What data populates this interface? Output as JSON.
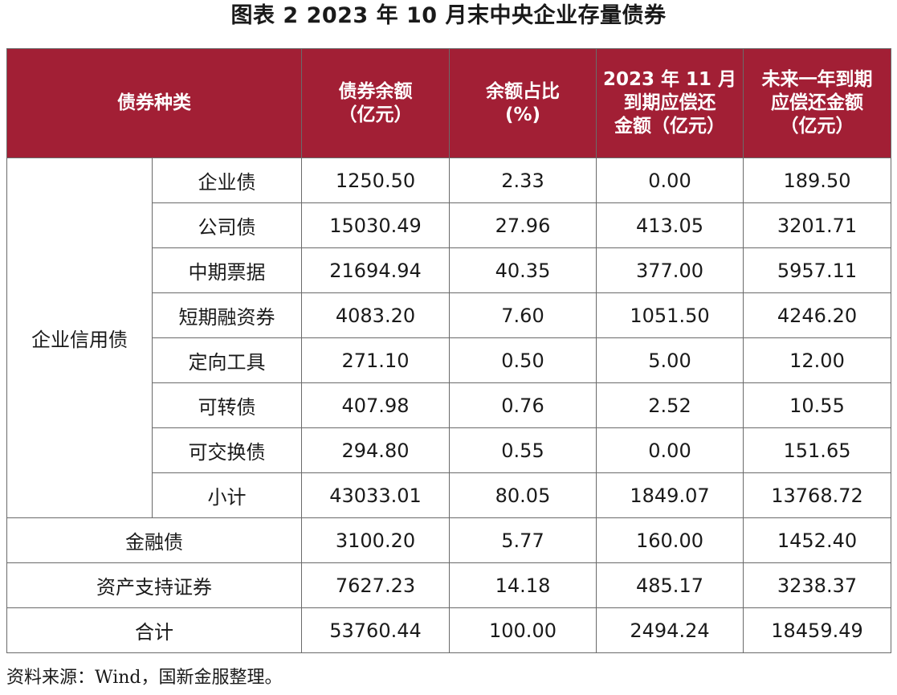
{
  "title": "图表 2 2023 年 10 月末中央企业存量债券",
  "headers": {
    "type": "债券种类",
    "balance": [
      "债券余额",
      "（亿元）"
    ],
    "share": [
      "余额占比",
      "(%)"
    ],
    "nov_due": [
      "2023 年 11 月",
      "到期应偿还",
      "金额（亿元）"
    ],
    "year_due": [
      "未来一年到期",
      "应偿还金额",
      "（亿元）"
    ]
  },
  "credit_group_label": "企业信用债",
  "credit_rows": [
    {
      "name": "企业债",
      "balance": "1250.50",
      "share": "2.33",
      "nov_due": "0.00",
      "year_due": "189.50"
    },
    {
      "name": "公司债",
      "balance": "15030.49",
      "share": "27.96",
      "nov_due": "413.05",
      "year_due": "3201.71"
    },
    {
      "name": "中期票据",
      "balance": "21694.94",
      "share": "40.35",
      "nov_due": "377.00",
      "year_due": "5957.11"
    },
    {
      "name": "短期融资券",
      "balance": "4083.20",
      "share": "7.60",
      "nov_due": "1051.50",
      "year_due": "4246.20"
    },
    {
      "name": "定向工具",
      "balance": "271.10",
      "share": "0.50",
      "nov_due": "5.00",
      "year_due": "12.00"
    },
    {
      "name": "可转债",
      "balance": "407.98",
      "share": "0.76",
      "nov_due": "2.52",
      "year_due": "10.55"
    },
    {
      "name": "可交换债",
      "balance": "294.80",
      "share": "0.55",
      "nov_due": "0.00",
      "year_due": "151.65"
    },
    {
      "name": "小计",
      "balance": "43033.01",
      "share": "80.05",
      "nov_due": "1849.07",
      "year_due": "13768.72"
    }
  ],
  "other_rows": [
    {
      "name": "金融债",
      "balance": "3100.20",
      "share": "5.77",
      "nov_due": "160.00",
      "year_due": "1452.40"
    },
    {
      "name": "资产支持证券",
      "balance": "7627.23",
      "share": "14.18",
      "nov_due": "485.17",
      "year_due": "3238.37"
    },
    {
      "name": "合计",
      "balance": "53760.44",
      "share": "100.00",
      "nov_due": "2494.24",
      "year_due": "18459.49"
    }
  ],
  "source": "资料来源：Wind，国新金服整理。",
  "colors": {
    "header_bg": "#a21f35",
    "header_text": "#ffffff",
    "border": "#6a6a6a"
  }
}
